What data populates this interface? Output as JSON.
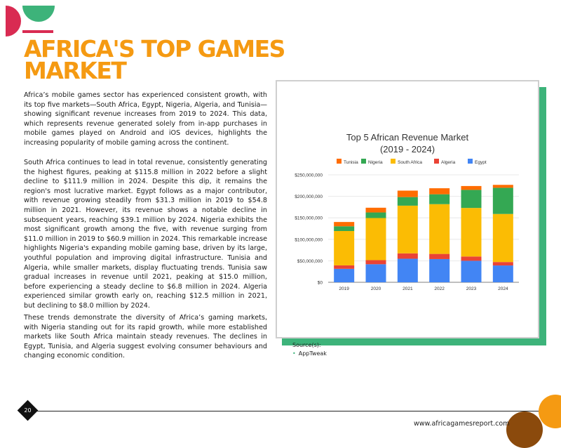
{
  "title": "AFRICA'S TOP GAMES MARKET",
  "paragraphs": [
    "Africa’s mobile games sector has experienced consistent growth, with its top five markets—South Africa, Egypt, Nigeria, Algeria, and Tunisia—showing significant revenue increases from 2019 to 2024. This data, which represents revenue generated solely from in-app purchases in mobile games played on Android and iOS devices, highlights the increasing popularity of mobile gaming across the continent.",
    "South Africa continues to lead in total revenue, consistently generating the highest figures, peaking at $115.8 million in 2022 before a slight decline to $111.9 million in 2024. Despite this dip, it remains the region's most lucrative market. Egypt follows as a major contributor, with revenue growing steadily from $31.3 million in 2019 to $54.8 million in 2021. However, its revenue shows a notable decline in subsequent years, reaching $39.1 million by 2024. Nigeria exhibits the most significant growth among the five, with revenue surging from $11.0 million in 2019 to $60.9 million in 2024. This remarkable increase highlights Nigeria's expanding mobile gaming base, driven by its large, youthful population and improving digital infrastructure. Tunisia and Algeria, while smaller markets, display fluctuating trends. Tunisia saw gradual increases in revenue until 2021, peaking at $15.0 million, before experiencing a steady decline to $6.8 million in 2024. Algeria experienced similar growth early on, reaching $12.5 million in 2021, but declining to $8.0 million by 2024.",
    "These trends demonstrate the diversity of Africa’s gaming markets, with Nigeria standing out for its rapid growth, while more established markets like South Africa maintain steady revenues. The declines in Egypt, Tunisia, and Algeria suggest evolving consumer behaviours and changing economic condition."
  ],
  "source": {
    "label": "Source(s):",
    "items": [
      "AppTweak"
    ]
  },
  "footer": {
    "page_number": "20",
    "website": "www.africagamesreport.com"
  },
  "colors": {
    "orange": "#f59a12",
    "green": "#3db37a",
    "crimson": "#d92b52",
    "brown": "#8b4a0c"
  },
  "chart_data": {
    "type": "bar",
    "stacked": true,
    "title": "Top 5 African Revenue Market",
    "subtitle": "(2019 - 2024)",
    "categories": [
      "2019",
      "2020",
      "2021",
      "2022",
      "2023",
      "2024"
    ],
    "yticks": [
      "$0",
      "$50,000,000",
      "$100,000,000",
      "$150,000,000",
      "$200,000,000",
      "$250,000,000"
    ],
    "ylim": [
      0,
      250000000
    ],
    "legend_position": "top",
    "legend_order": [
      "Tunisia",
      "Nigeria",
      "South Africa",
      "Algeria",
      "Egypt"
    ],
    "series": [
      {
        "name": "Egypt",
        "color": "#4285f4",
        "values": [
          31300000,
          42000000,
          54800000,
          54000000,
          50000000,
          39100000
        ]
      },
      {
        "name": "Algeria",
        "color": "#ea4335",
        "values": [
          8000000,
          9500000,
          12500000,
          12000000,
          10000000,
          8000000
        ]
      },
      {
        "name": "South Africa",
        "color": "#fbbc04",
        "values": [
          80000000,
          98000000,
          111000000,
          115800000,
          113000000,
          111900000
        ]
      },
      {
        "name": "Nigeria",
        "color": "#34a853",
        "values": [
          11000000,
          13000000,
          20000000,
          23000000,
          42000000,
          60900000
        ]
      },
      {
        "name": "Tunisia",
        "color": "#ff6d01",
        "values": [
          10000000,
          11000000,
          15000000,
          14000000,
          9000000,
          6800000
        ]
      }
    ]
  }
}
